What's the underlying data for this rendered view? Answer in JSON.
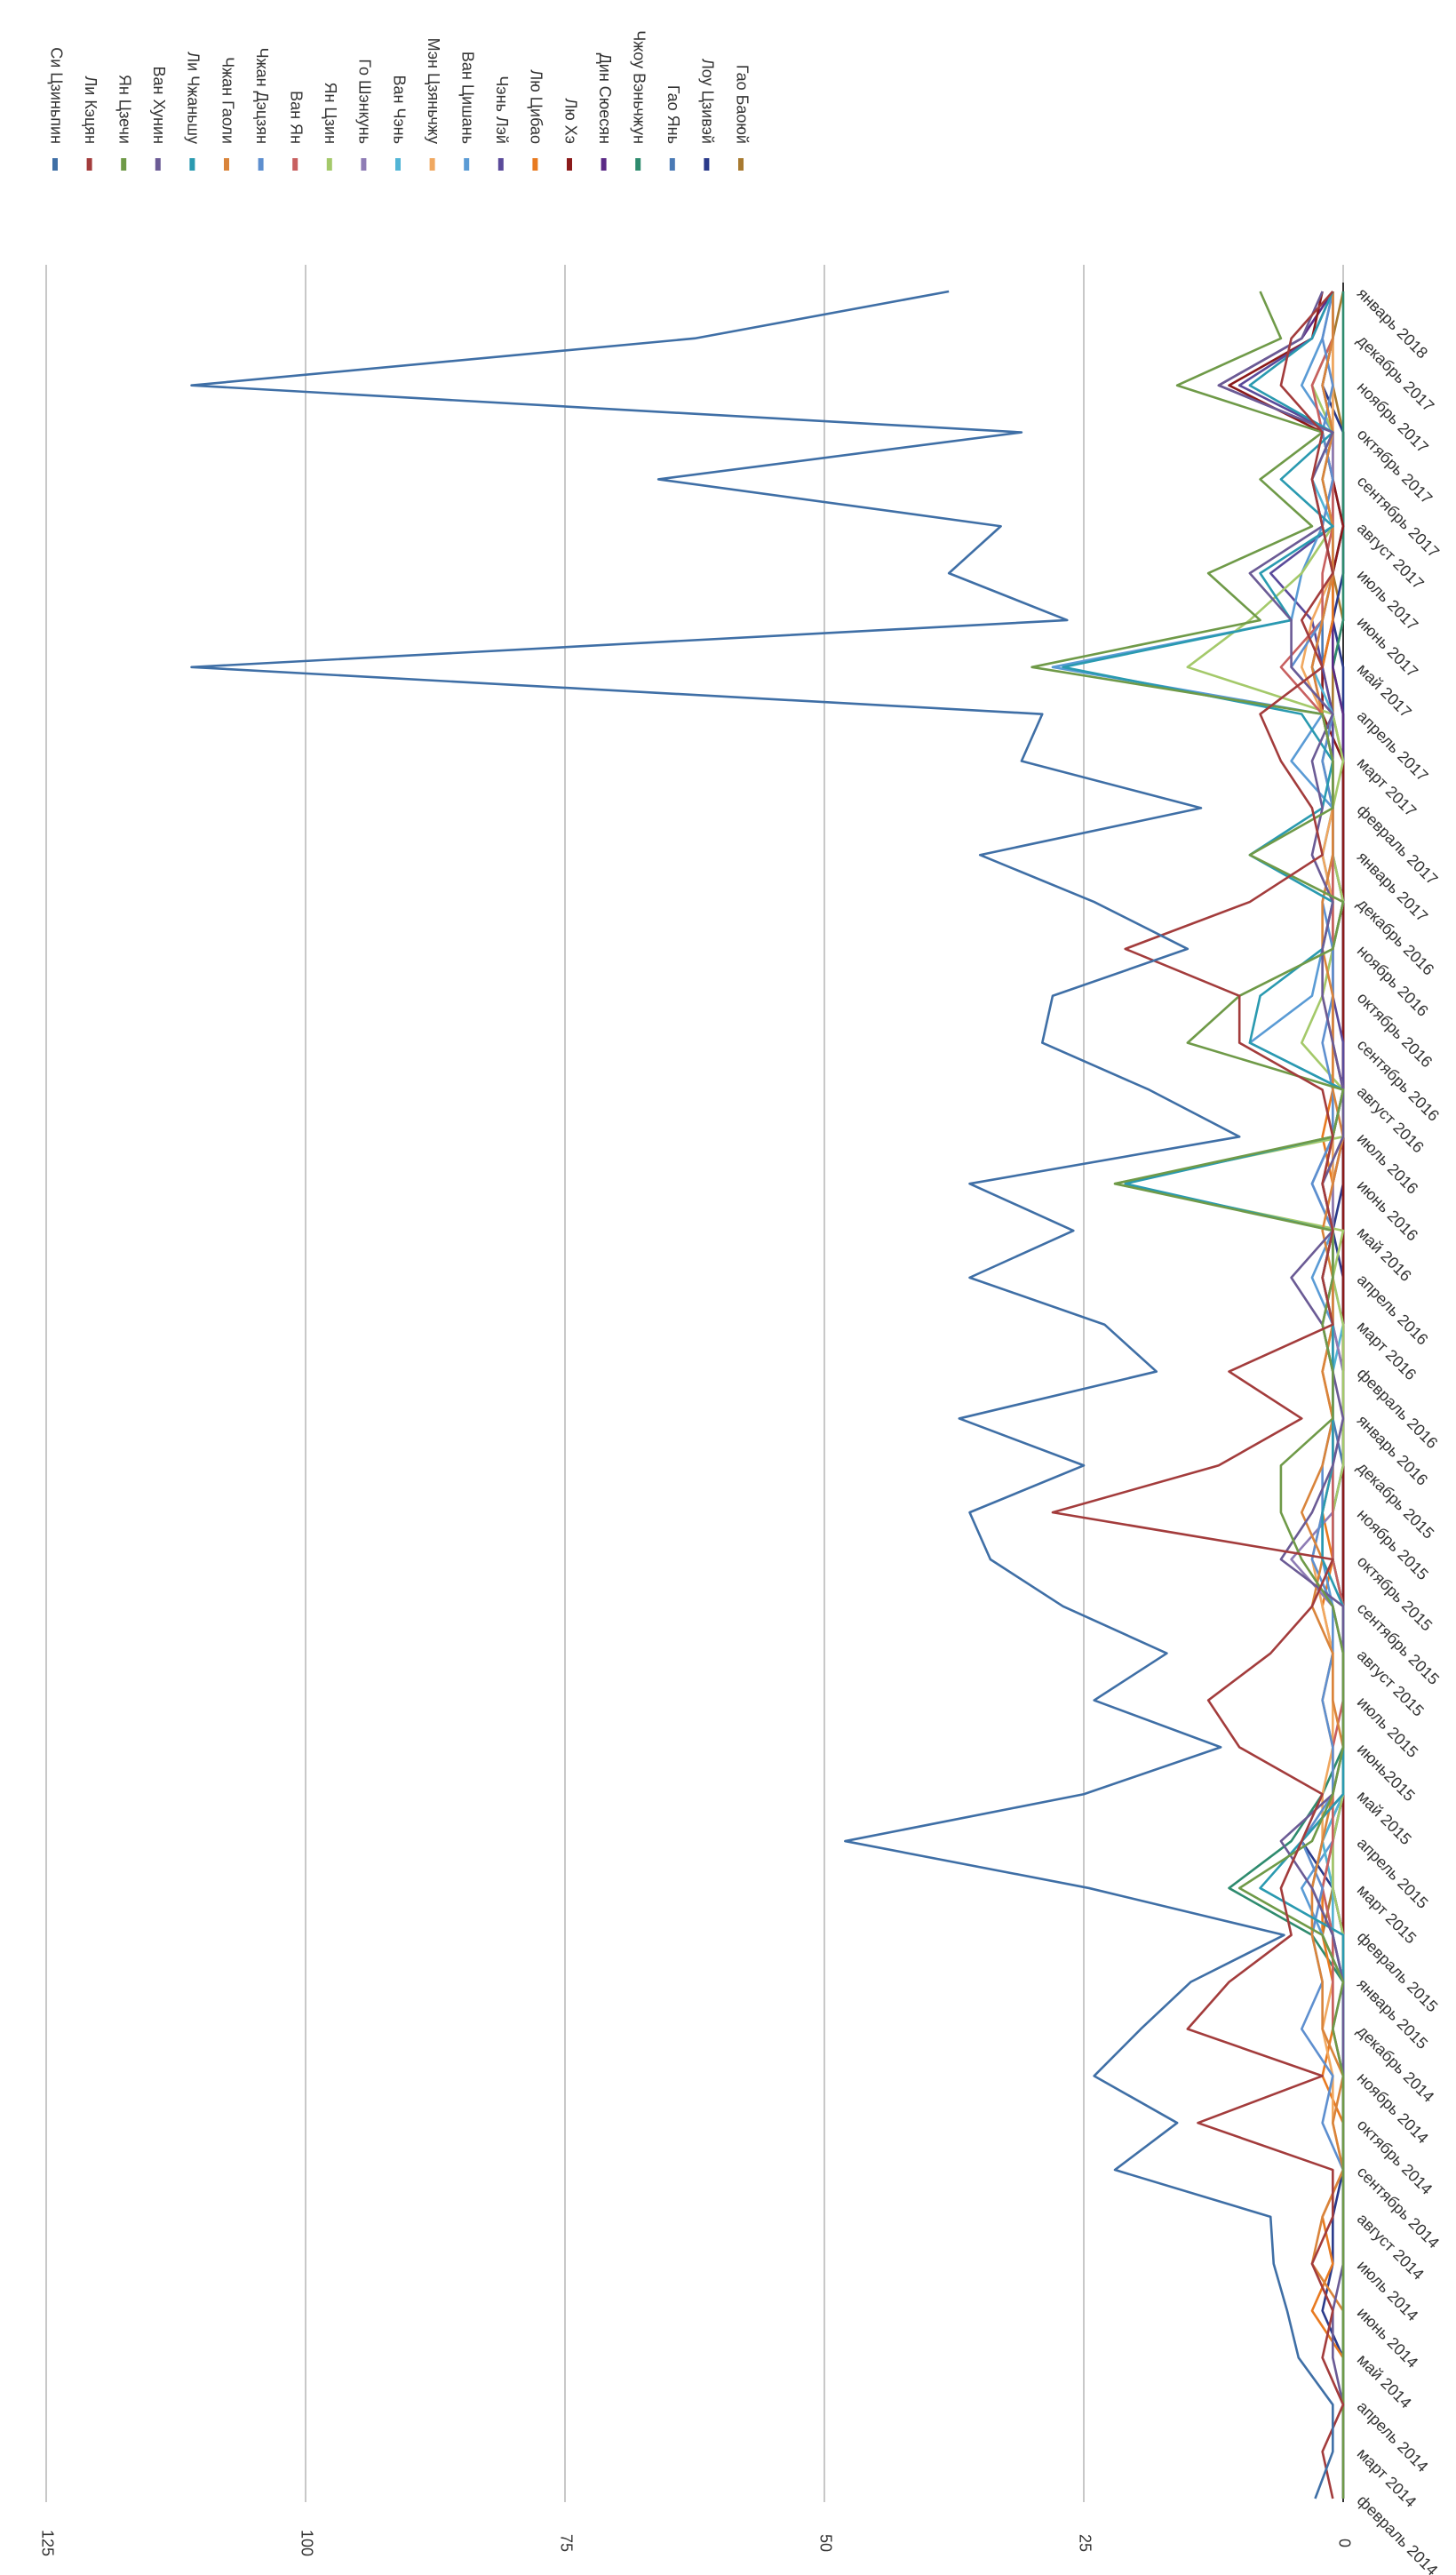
{
  "chart_data": {
    "type": "line",
    "categories": [
      "февраль 2014",
      "март 2014",
      "апрель 2014",
      "май 2014",
      "июнь 2014",
      "июль 2014",
      "август 2014",
      "сентябрь 2014",
      "октябрь 2014",
      "ноябрь 2014",
      "декабрь 2014",
      "январь 2015",
      "февраль 2015",
      "март 2015",
      "апрель 2015",
      "май 2015",
      "июнь2015",
      "июль 2015",
      "август 2015",
      "сентябрь 2015",
      "октябрь 2015",
      "ноябрь 2015",
      "декабрь 2015",
      "январь 2016",
      "февраль 2016",
      "март 2016",
      "апрель 2016",
      "май 2016",
      "июнь 2016",
      "июль 2016",
      "август 2016",
      "сентябрь 2016",
      "октябрь 2016",
      "ноябрь 2016",
      "декабрь 2016",
      "январь 2017",
      "февраль 2017",
      "март 2017",
      "апрель 2017",
      "май 2017",
      "июнь 2017",
      "июль 2017",
      "август 2017",
      "сентябрь 2017",
      "октябрь 2017",
      "ноябрь 2017",
      "декабрь 2017",
      "январь 2018"
    ],
    "ylim": [
      0,
      125
    ],
    "yticks": [
      0,
      25,
      50,
      75,
      100,
      125
    ],
    "grid": true,
    "series": [
      {
        "name": "Си Цзиньпин",
        "color": "#3f6fa6",
        "values": [
          2.7,
          1,
          1,
          4.3,
          5.4,
          6.7,
          7,
          22,
          16,
          24,
          19.5,
          14.7,
          5.7,
          24.5,
          48,
          25,
          11.8,
          24,
          17,
          27,
          34,
          36,
          25,
          37,
          18,
          23,
          36,
          26,
          36,
          10,
          18.7,
          29,
          28,
          15,
          24,
          35,
          13.7,
          31,
          29,
          111,
          26.6,
          38,
          33,
          66,
          31,
          111,
          62.5,
          38
        ]
      },
      {
        "name": "Ли Кэцян",
        "color": "#a33c3c",
        "values": [
          1,
          2,
          0,
          2,
          1,
          3,
          1,
          1,
          14,
          2,
          15,
          11,
          5,
          6,
          4,
          2,
          10,
          13,
          7,
          3,
          1,
          28,
          12,
          4,
          11,
          1,
          2,
          1,
          2,
          1,
          2,
          10,
          10,
          21,
          9,
          2,
          3,
          6,
          8,
          2,
          4,
          1,
          2,
          3,
          2,
          6,
          5,
          1
        ]
      },
      {
        "name": "Ян Цзечи",
        "color": "#6f9a48",
        "values": [
          0,
          0,
          0,
          0,
          0,
          0,
          0,
          0,
          0,
          0,
          1,
          0,
          2,
          10,
          3,
          1,
          0,
          0,
          0,
          1,
          4,
          6,
          6,
          1,
          1,
          2,
          1,
          1,
          22,
          1,
          0,
          15,
          10,
          1,
          0,
          9,
          1,
          1,
          2,
          30,
          8,
          13,
          3,
          8,
          2,
          16,
          6,
          8
        ]
      },
      {
        "name": "Ван Хунин",
        "color": "#6b5b95",
        "values": [
          0,
          0,
          0,
          1,
          1,
          0,
          0,
          0,
          0,
          0,
          0,
          0,
          1,
          3,
          6,
          1,
          0,
          0,
          0,
          0,
          6,
          3,
          1,
          0,
          1,
          2,
          5,
          1,
          2,
          0,
          0,
          1,
          2,
          2,
          1,
          3,
          2,
          3,
          1,
          5,
          5,
          9,
          2,
          3,
          1,
          12,
          4,
          2
        ]
      },
      {
        "name": "Ли Чжаньшу",
        "color": "#2a9ab0",
        "values": [
          0,
          0,
          0,
          0,
          0,
          0,
          0,
          0,
          0,
          0,
          0,
          0,
          0,
          8,
          4,
          0,
          0,
          0,
          0,
          0,
          2,
          2,
          1,
          1,
          1,
          1,
          2,
          1,
          21,
          1,
          0,
          9,
          8,
          2,
          1,
          9,
          2,
          1,
          4,
          27,
          5,
          8,
          1,
          6,
          1,
          9,
          3,
          1
        ]
      },
      {
        "name": "Чжан Гаоли",
        "color": "#d9843b",
        "values": [
          0,
          0,
          0,
          0,
          0,
          3,
          2,
          0,
          1,
          0,
          2,
          2,
          3,
          3,
          2,
          1,
          0,
          1,
          1,
          3,
          2,
          4,
          2,
          1,
          2,
          1,
          1,
          2,
          1,
          0,
          1,
          1,
          1,
          2,
          2,
          1,
          1,
          1,
          2,
          3,
          2,
          1,
          1,
          2,
          1,
          2,
          1,
          1
        ]
      },
      {
        "name": "Чжан Дэцзян",
        "color": "#5e8fcf",
        "values": [
          0,
          0,
          0,
          0,
          0,
          0,
          0,
          0,
          2,
          1,
          4,
          2,
          3,
          2,
          4,
          1,
          1,
          2,
          1,
          1,
          3,
          2,
          2,
          1,
          1,
          2,
          1,
          1,
          3,
          1,
          1,
          2,
          1,
          1,
          2,
          1,
          1,
          2,
          1,
          5,
          2,
          1,
          2,
          1,
          2,
          1,
          2,
          1
        ]
      },
      {
        "name": "Ван Ян",
        "color": "#c86060",
        "values": [
          0,
          0,
          0,
          0,
          0,
          0,
          0,
          0,
          0,
          0,
          1,
          1,
          1,
          2,
          1,
          1,
          1,
          0,
          0,
          0,
          1,
          1,
          1,
          1,
          1,
          1,
          2,
          1,
          2,
          1,
          0,
          1,
          1,
          1,
          1,
          1,
          1,
          1,
          2,
          6,
          2,
          2,
          1,
          1,
          2,
          3,
          1,
          1
        ]
      },
      {
        "name": "Ян Цзин",
        "color": "#a4c96a",
        "values": [
          0,
          0,
          0,
          0,
          0,
          0,
          0,
          0,
          0,
          0,
          0,
          0,
          0,
          1,
          1,
          0,
          0,
          0,
          0,
          0,
          1,
          1,
          0,
          0,
          0,
          0,
          1,
          0,
          22,
          0,
          0,
          4,
          2,
          1,
          0,
          1,
          1,
          0,
          1,
          15,
          9,
          4,
          1,
          2,
          1,
          3,
          1,
          1
        ]
      },
      {
        "name": "Го Шэнкунь",
        "color": "#8e7cb5",
        "values": [
          0,
          0,
          0,
          0,
          0,
          0,
          0,
          0,
          0,
          0,
          1,
          0,
          1,
          2,
          1,
          0,
          0,
          0,
          0,
          1,
          5,
          1,
          1,
          0,
          0,
          1,
          2,
          1,
          1,
          0,
          0,
          1,
          1,
          1,
          0,
          1,
          1,
          1,
          2,
          3,
          2,
          1,
          1,
          1,
          1,
          2,
          1,
          1
        ]
      },
      {
        "name": "Ван Чэнь",
        "color": "#52b5d6",
        "values": [
          0,
          0,
          0,
          0,
          0,
          0,
          0,
          0,
          0,
          0,
          0,
          0,
          1,
          1,
          2,
          0,
          0,
          0,
          0,
          0,
          1,
          1,
          1,
          1,
          1,
          0,
          1,
          1,
          2,
          0,
          0,
          1,
          1,
          1,
          0,
          1,
          1,
          2,
          1,
          3,
          2,
          1,
          1,
          3,
          1,
          2,
          1,
          1
        ]
      },
      {
        "name": "Мэн Цзяньчжу",
        "color": "#f0a860",
        "values": [
          0,
          0,
          0,
          0,
          0,
          0,
          0,
          0,
          1,
          1,
          2,
          1,
          1,
          1,
          2,
          2,
          1,
          1,
          1,
          2,
          3,
          2,
          1,
          1,
          1,
          2,
          1,
          1,
          1,
          1,
          1,
          1,
          2,
          1,
          1,
          2,
          1,
          1,
          2,
          4,
          3,
          1,
          2,
          1,
          1,
          1,
          1,
          1
        ]
      },
      {
        "name": "Ван Цишань",
        "color": "#5a9bd5",
        "values": [
          0,
          0,
          0,
          0,
          0,
          0,
          0,
          0,
          0,
          0,
          0,
          0,
          2,
          4,
          1,
          0,
          0,
          0,
          0,
          1,
          2,
          2,
          1,
          1,
          1,
          1,
          3,
          1,
          3,
          1,
          0,
          9,
          3,
          2,
          1,
          2,
          1,
          5,
          2,
          28,
          5,
          4,
          2,
          3,
          1,
          4,
          2,
          1
        ]
      },
      {
        "name": "Чэнь Лэй",
        "color": "#5a4a9a",
        "values": [
          0,
          0,
          0,
          0,
          0,
          0,
          0,
          0,
          0,
          0,
          0,
          0,
          0,
          1,
          1,
          0,
          0,
          0,
          0,
          0,
          1,
          1,
          0,
          0,
          0,
          1,
          1,
          1,
          1,
          0,
          0,
          0,
          1,
          1,
          0,
          1,
          1,
          1,
          1,
          2,
          3,
          7,
          1,
          2,
          1,
          10,
          3,
          1
        ]
      },
      {
        "name": "Лю Цибао",
        "color": "#e87a20",
        "values": [
          0,
          0,
          0,
          0,
          3,
          1,
          2,
          0,
          0,
          2,
          1,
          1,
          2,
          2,
          1,
          1,
          1,
          2,
          1,
          2,
          1,
          2,
          1,
          1,
          2,
          1,
          1,
          1,
          1,
          2,
          1,
          1,
          1,
          1,
          1,
          1,
          1,
          2,
          1,
          2,
          1,
          1,
          1,
          1,
          1,
          1,
          1,
          1
        ]
      },
      {
        "name": "Лю Хэ",
        "color": "#8b1a1a",
        "values": [
          0,
          0,
          0,
          0,
          0,
          0,
          0,
          0,
          0,
          0,
          0,
          0,
          0,
          0,
          0,
          0,
          0,
          0,
          0,
          0,
          0,
          0,
          0,
          0,
          0,
          0,
          0,
          0,
          0,
          0,
          0,
          0,
          0,
          0,
          0,
          0,
          0,
          0,
          2,
          2,
          1,
          1,
          0,
          1,
          2,
          11,
          3,
          2
        ]
      },
      {
        "name": "Дин Сюесян",
        "color": "#5b2a86",
        "values": [
          0,
          0,
          0,
          0,
          0,
          0,
          0,
          0,
          0,
          0,
          0,
          0,
          0,
          0,
          0,
          0,
          0,
          0,
          0,
          0,
          0,
          0,
          0,
          0,
          0,
          0,
          0,
          0,
          0,
          0,
          0,
          0,
          0,
          0,
          0,
          0,
          0,
          0,
          0,
          1,
          1,
          1,
          0,
          1,
          1,
          12,
          4,
          1
        ]
      },
      {
        "name": "Чжоу Вэньчжун",
        "color": "#2e8b6e",
        "values": [
          0,
          0,
          0,
          0,
          0,
          0,
          0,
          0,
          0,
          0,
          0,
          0,
          3,
          11,
          5,
          2,
          0,
          0,
          0,
          0,
          0,
          0,
          0,
          0,
          0,
          0,
          0,
          0,
          0,
          0,
          0,
          0,
          0,
          0,
          0,
          0,
          0,
          0,
          0,
          1,
          0,
          0,
          0,
          0,
          0,
          0,
          0,
          0
        ]
      },
      {
        "name": "Гао Янь",
        "color": "#4a7ab5",
        "values": [
          0,
          0,
          0,
          0,
          0,
          0,
          0,
          0,
          0,
          0,
          0,
          0,
          1,
          3,
          2,
          0,
          0,
          0,
          0,
          0,
          1,
          1,
          0,
          1,
          1,
          1,
          1,
          1,
          1,
          1,
          0,
          1,
          1,
          1,
          1,
          2,
          1,
          1,
          2,
          2,
          2,
          1,
          1,
          1,
          1,
          2,
          1,
          1
        ]
      },
      {
        "name": "Лоу Цзивэй",
        "color": "#2a3a8a",
        "values": [
          0,
          0,
          0,
          0,
          2,
          1,
          1,
          0,
          0,
          0,
          0,
          0,
          0,
          1,
          4,
          0,
          0,
          0,
          0,
          0,
          0,
          0,
          0,
          0,
          0,
          0,
          0,
          1,
          0,
          0,
          0,
          0,
          0,
          0,
          0,
          0,
          0,
          0,
          0,
          0,
          1,
          0,
          0,
          0,
          0,
          2,
          1,
          1
        ]
      },
      {
        "name": "Гао Баоюй",
        "color": "#a87a30",
        "values": [
          0,
          0,
          0,
          0,
          0,
          0,
          0,
          0,
          0,
          0,
          0,
          0,
          2,
          1,
          1,
          0,
          0,
          0,
          0,
          0,
          0,
          0,
          0,
          0,
          0,
          0,
          0,
          0,
          0,
          0,
          0,
          0,
          0,
          0,
          0,
          0,
          0,
          0,
          1,
          1,
          0,
          1,
          0,
          0,
          0,
          1,
          1,
          0
        ]
      }
    ]
  }
}
